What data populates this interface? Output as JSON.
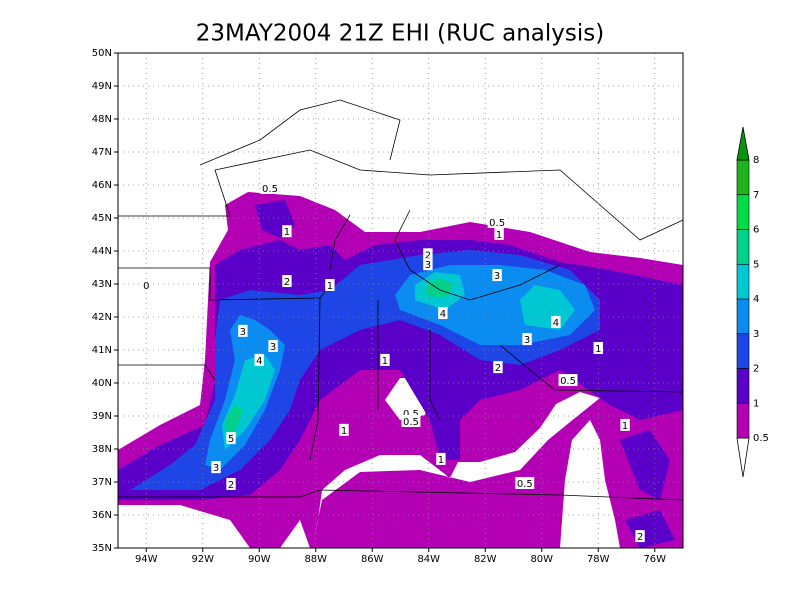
{
  "title": "23MAY2004 21Z EHI (RUC analysis)",
  "map": {
    "xlim": [
      -95,
      -75
    ],
    "ylim": [
      35,
      50
    ],
    "lon_ticks": [
      {
        "value": -94,
        "label": "94W"
      },
      {
        "value": -92,
        "label": "92W"
      },
      {
        "value": -90,
        "label": "90W"
      },
      {
        "value": -88,
        "label": "88W"
      },
      {
        "value": -86,
        "label": "86W"
      },
      {
        "value": -84,
        "label": "84W"
      },
      {
        "value": -82,
        "label": "82W"
      },
      {
        "value": -80,
        "label": "80W"
      },
      {
        "value": -78,
        "label": "78W"
      },
      {
        "value": -76,
        "label": "76W"
      }
    ],
    "lat_ticks": [
      {
        "value": 35,
        "label": "35N"
      },
      {
        "value": 36,
        "label": "36N"
      },
      {
        "value": 37,
        "label": "37N"
      },
      {
        "value": 38,
        "label": "38N"
      },
      {
        "value": 39,
        "label": "39N"
      },
      {
        "value": 40,
        "label": "40N"
      },
      {
        "value": 41,
        "label": "41N"
      },
      {
        "value": 42,
        "label": "42N"
      },
      {
        "value": 43,
        "label": "43N"
      },
      {
        "value": 44,
        "label": "44N"
      },
      {
        "value": 45,
        "label": "45N"
      },
      {
        "value": 46,
        "label": "46N"
      },
      {
        "value": 47,
        "label": "47N"
      },
      {
        "value": 48,
        "label": "48N"
      },
      {
        "value": 49,
        "label": "49N"
      },
      {
        "value": 50,
        "label": "50N"
      }
    ],
    "contour_labels": [
      {
        "value": 0.5,
        "lon": -89.62,
        "lat": 45.91
      },
      {
        "value": 1,
        "lon": -89.02,
        "lat": 44.6
      },
      {
        "value": 2,
        "lon": -89.02,
        "lat": 43.09
      },
      {
        "value": 1,
        "lon": -87.5,
        "lat": 42.97
      },
      {
        "value": 2,
        "lon": -84.03,
        "lat": 43.9
      },
      {
        "value": 3,
        "lon": -84.03,
        "lat": 43.6
      },
      {
        "value": 0.5,
        "lon": -81.58,
        "lat": 44.88
      },
      {
        "value": 1,
        "lon": -81.51,
        "lat": 44.52
      },
      {
        "value": 3,
        "lon": -81.58,
        "lat": 43.27
      },
      {
        "value": 4,
        "lon": -83.5,
        "lat": 42.12
      },
      {
        "value": 4,
        "lon": -79.5,
        "lat": 41.85
      },
      {
        "value": 3,
        "lon": -80.52,
        "lat": 41.33
      },
      {
        "value": 1,
        "lon": -78.0,
        "lat": 41.06
      },
      {
        "value": 2,
        "lon": -81.55,
        "lat": 40.48
      },
      {
        "value": 1,
        "lon": -85.55,
        "lat": 40.7
      },
      {
        "value": 0.5,
        "lon": -79.07,
        "lat": 40.09
      },
      {
        "value": 0.5,
        "lon": -84.63,
        "lat": 39.09
      },
      {
        "value": 0.5,
        "lon": -84.63,
        "lat": 38.85
      },
      {
        "value": 1,
        "lon": -87.0,
        "lat": 38.58
      },
      {
        "value": 1,
        "lon": -83.57,
        "lat": 37.7
      },
      {
        "value": 0.5,
        "lon": -80.6,
        "lat": 36.97
      },
      {
        "value": 1,
        "lon": -77.05,
        "lat": 38.73
      },
      {
        "value": 2,
        "lon": -76.52,
        "lat": 35.36
      },
      {
        "value": 3,
        "lon": -90.58,
        "lat": 41.58
      },
      {
        "value": 3,
        "lon": -89.51,
        "lat": 41.12
      },
      {
        "value": 4,
        "lon": -90.0,
        "lat": 40.7
      },
      {
        "value": 5,
        "lon": -91.0,
        "lat": 38.33
      },
      {
        "value": 3,
        "lon": -91.53,
        "lat": 37.45
      },
      {
        "value": 2,
        "lon": -91.0,
        "lat": 36.94
      },
      {
        "value": 0,
        "lon": -94.0,
        "lat": 42.97
      }
    ]
  },
  "colorbar": {
    "levels": [
      0.5,
      1,
      2,
      3,
      4,
      5,
      6,
      7,
      8
    ],
    "colors": [
      "#b400b4",
      "#5a00c8",
      "#1e46e6",
      "#0a8cf0",
      "#00c8d2",
      "#00d28c",
      "#00dc46",
      "#1eb41e",
      "#0a960a"
    ],
    "under_color": "#ffffff"
  }
}
